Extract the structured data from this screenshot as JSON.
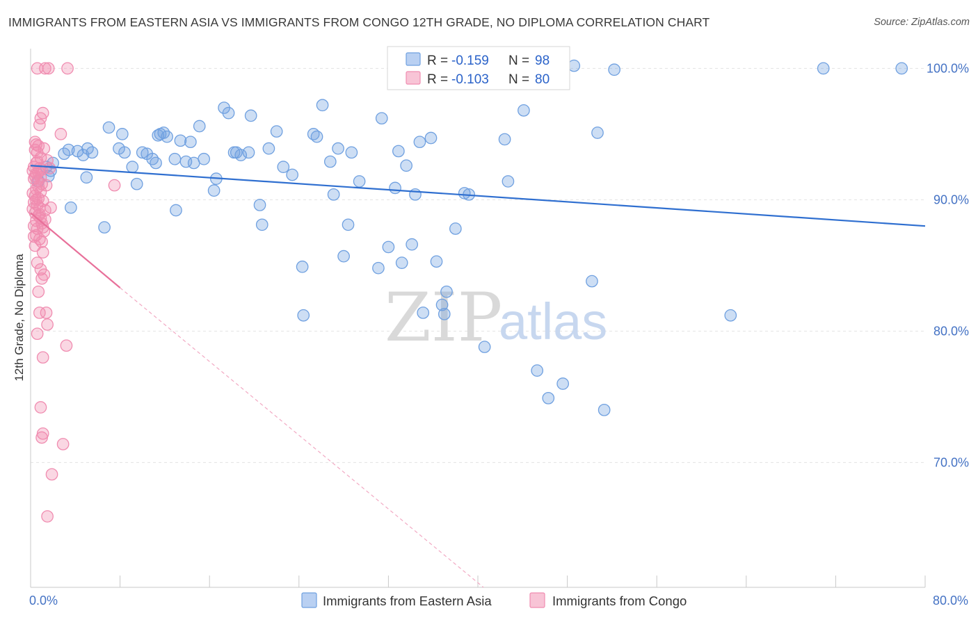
{
  "header": {
    "title": "IMMIGRANTS FROM EASTERN ASIA VS IMMIGRANTS FROM CONGO 12TH GRADE, NO DIPLOMA CORRELATION CHART",
    "source": "Source: ZipAtlas.com"
  },
  "watermark": {
    "zip": "ZIP",
    "atlas": "atlas"
  },
  "legend": {
    "r_label": "R =",
    "n_label": "N =",
    "series": [
      {
        "r": "-0.159",
        "n": "98",
        "color": "#6fa0e0"
      },
      {
        "r": "-0.103",
        "n": "80",
        "color": "#f08cb0"
      }
    ]
  },
  "bottom_legend": [
    {
      "label": "Immigrants from Eastern Asia"
    },
    {
      "label": "Immigrants from Congo"
    }
  ],
  "chart_data": {
    "type": "scatter",
    "ylabel": "12th Grade, No Diploma",
    "xlim": [
      0,
      80
    ],
    "ylim": [
      60.5,
      101.5
    ],
    "x_tick_labels": [
      {
        "value": 0,
        "label": "0.0%"
      },
      {
        "value": 80,
        "label": "80.0%"
      }
    ],
    "y_tick_labels": [
      {
        "value": 100,
        "label": "100.0%"
      },
      {
        "value": 90,
        "label": "90.0%"
      },
      {
        "value": 80,
        "label": "80.0%"
      },
      {
        "value": 70,
        "label": "70.0%"
      }
    ],
    "colors": {
      "eastern_asia": "#6fa0e0",
      "congo": "#f08cb0",
      "eastern_asia_line": "#2f6fd0",
      "congo_line": "#e8709a"
    },
    "series": [
      {
        "name": "Immigrants from Eastern Asia",
        "trend": {
          "x1": 0,
          "y1": 92.6,
          "x2": 80,
          "y2": 88.0
        },
        "points": [
          [
            1.4,
            92.5
          ],
          [
            1.8,
            92.2
          ],
          [
            1.6,
            91.8
          ],
          [
            2.0,
            92.8
          ],
          [
            3.4,
            93.8
          ],
          [
            3.0,
            93.5
          ],
          [
            3.6,
            89.4
          ],
          [
            4.2,
            93.7
          ],
          [
            4.7,
            93.4
          ],
          [
            5.1,
            93.9
          ],
          [
            5.5,
            93.6
          ],
          [
            5.0,
            91.7
          ],
          [
            6.6,
            87.9
          ],
          [
            7.0,
            95.5
          ],
          [
            7.9,
            93.9
          ],
          [
            8.2,
            95.0
          ],
          [
            8.4,
            93.6
          ],
          [
            9.1,
            92.5
          ],
          [
            9.5,
            91.2
          ],
          [
            10.0,
            93.6
          ],
          [
            10.4,
            93.5
          ],
          [
            10.9,
            93.1
          ],
          [
            11.2,
            92.8
          ],
          [
            11.4,
            94.9
          ],
          [
            11.9,
            95.1
          ],
          [
            13.0,
            89.2
          ],
          [
            11.6,
            95.0
          ],
          [
            12.2,
            94.8
          ],
          [
            12.9,
            93.1
          ],
          [
            13.4,
            94.5
          ],
          [
            13.9,
            92.9
          ],
          [
            14.3,
            94.4
          ],
          [
            14.6,
            92.8
          ],
          [
            15.1,
            95.6
          ],
          [
            15.5,
            93.1
          ],
          [
            16.4,
            90.7
          ],
          [
            16.6,
            91.6
          ],
          [
            17.3,
            97.0
          ],
          [
            17.7,
            96.6
          ],
          [
            18.2,
            93.6
          ],
          [
            18.4,
            93.6
          ],
          [
            18.8,
            93.4
          ],
          [
            19.5,
            93.6
          ],
          [
            19.7,
            96.4
          ],
          [
            20.7,
            88.1
          ],
          [
            20.5,
            89.6
          ],
          [
            21.3,
            93.9
          ],
          [
            22.0,
            95.2
          ],
          [
            22.6,
            92.5
          ],
          [
            23.4,
            91.9
          ],
          [
            24.3,
            84.9
          ],
          [
            24.4,
            81.2
          ],
          [
            25.3,
            95.0
          ],
          [
            25.6,
            94.8
          ],
          [
            26.1,
            97.2
          ],
          [
            26.8,
            92.9
          ],
          [
            27.1,
            90.4
          ],
          [
            27.5,
            93.9
          ],
          [
            28.0,
            85.7
          ],
          [
            28.4,
            88.1
          ],
          [
            28.7,
            93.6
          ],
          [
            29.4,
            91.4
          ],
          [
            31.1,
            84.8
          ],
          [
            31.4,
            96.2
          ],
          [
            32.0,
            86.4
          ],
          [
            32.6,
            90.9
          ],
          [
            32.9,
            93.7
          ],
          [
            33.2,
            85.2
          ],
          [
            33.6,
            92.6
          ],
          [
            34.1,
            86.6
          ],
          [
            34.4,
            90.4
          ],
          [
            35.1,
            81.4
          ],
          [
            34.8,
            94.4
          ],
          [
            35.8,
            94.7
          ],
          [
            36.3,
            85.3
          ],
          [
            36.8,
            82.0
          ],
          [
            37.0,
            81.3
          ],
          [
            37.2,
            83.0
          ],
          [
            38.0,
            87.8
          ],
          [
            38.8,
            90.5
          ],
          [
            39.2,
            90.4
          ],
          [
            40.6,
            78.8
          ],
          [
            42.7,
            91.4
          ],
          [
            42.4,
            94.6
          ],
          [
            43.6,
            99.0
          ],
          [
            44.1,
            96.8
          ],
          [
            45.3,
            77.0
          ],
          [
            47.6,
            76.0
          ],
          [
            46.3,
            74.9
          ],
          [
            50.2,
            83.8
          ],
          [
            51.3,
            74.0
          ],
          [
            48.6,
            100.2
          ],
          [
            52.2,
            99.9
          ],
          [
            50.7,
            95.1
          ],
          [
            62.6,
            81.2
          ],
          [
            70.9,
            100.0
          ],
          [
            77.9,
            100.0
          ],
          [
            0.7,
            91.4
          ]
        ]
      },
      {
        "name": "Immigrants from Congo",
        "trend": {
          "x1": 0,
          "y1": 89.0,
          "x2": 8.0,
          "y2": 83.3
        },
        "trend_extension": {
          "x1": 8.0,
          "y1": 83.3,
          "x2": 40.5,
          "y2": 60.5
        },
        "points": [
          [
            0.6,
            100.0
          ],
          [
            1.3,
            100.0
          ],
          [
            1.6,
            100.0
          ],
          [
            3.3,
            100.0
          ],
          [
            1.1,
            96.6
          ],
          [
            0.8,
            95.7
          ],
          [
            0.9,
            96.2
          ],
          [
            2.7,
            95.0
          ],
          [
            0.5,
            94.2
          ],
          [
            0.7,
            94.1
          ],
          [
            0.4,
            93.8
          ],
          [
            1.2,
            93.9
          ],
          [
            0.6,
            93.6
          ],
          [
            0.9,
            93.2
          ],
          [
            0.5,
            92.8
          ],
          [
            0.3,
            92.5
          ],
          [
            0.8,
            92.4
          ],
          [
            1.0,
            92.3
          ],
          [
            0.7,
            92.1
          ],
          [
            0.4,
            91.8
          ],
          [
            0.3,
            91.6
          ],
          [
            0.6,
            91.4
          ],
          [
            1.0,
            91.2
          ],
          [
            1.4,
            91.1
          ],
          [
            0.5,
            90.8
          ],
          [
            0.9,
            90.6
          ],
          [
            0.4,
            90.3
          ],
          [
            0.7,
            90.1
          ],
          [
            1.1,
            89.9
          ],
          [
            0.3,
            89.8
          ],
          [
            0.6,
            89.6
          ],
          [
            0.8,
            89.4
          ],
          [
            1.3,
            89.2
          ],
          [
            0.4,
            89.0
          ],
          [
            0.7,
            88.8
          ],
          [
            0.9,
            88.6
          ],
          [
            0.5,
            88.4
          ],
          [
            1.0,
            88.2
          ],
          [
            0.3,
            88.0
          ],
          [
            0.6,
            87.8
          ],
          [
            1.2,
            87.6
          ],
          [
            0.5,
            87.3
          ],
          [
            0.8,
            87.0
          ],
          [
            1.0,
            86.8
          ],
          [
            0.4,
            86.5
          ],
          [
            1.1,
            86.0
          ],
          [
            0.6,
            85.2
          ],
          [
            0.9,
            84.7
          ],
          [
            1.2,
            84.3
          ],
          [
            0.7,
            83.0
          ],
          [
            1.0,
            84.0
          ],
          [
            0.8,
            81.4
          ],
          [
            1.4,
            81.4
          ],
          [
            1.5,
            80.5
          ],
          [
            0.6,
            79.8
          ],
          [
            3.2,
            78.9
          ],
          [
            1.1,
            78.0
          ],
          [
            0.9,
            74.2
          ],
          [
            1.1,
            72.2
          ],
          [
            1.0,
            71.9
          ],
          [
            2.9,
            71.4
          ],
          [
            1.9,
            69.1
          ],
          [
            1.5,
            65.9
          ],
          [
            7.5,
            91.1
          ],
          [
            0.5,
            92.0
          ],
          [
            0.2,
            90.5
          ],
          [
            0.2,
            89.3
          ],
          [
            1.5,
            93.0
          ],
          [
            0.3,
            87.2
          ],
          [
            0.8,
            88.9
          ],
          [
            0.9,
            91.7
          ],
          [
            0.6,
            92.9
          ],
          [
            1.7,
            92.4
          ],
          [
            0.4,
            94.4
          ],
          [
            1.8,
            89.4
          ],
          [
            1.1,
            87.9
          ],
          [
            0.5,
            90.0
          ],
          [
            0.7,
            91.0
          ],
          [
            1.3,
            88.5
          ],
          [
            0.2,
            92.2
          ]
        ]
      }
    ]
  }
}
